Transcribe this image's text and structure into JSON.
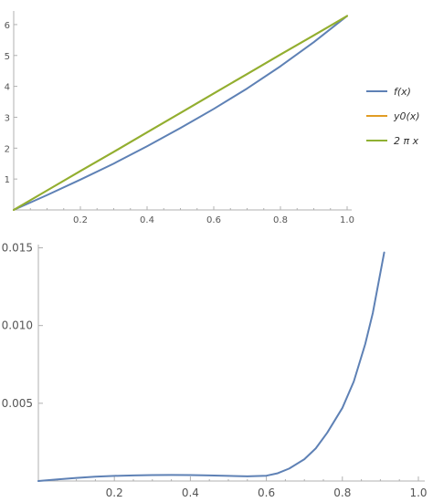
{
  "chart_data": [
    {
      "type": "line",
      "title": "",
      "xlabel": "",
      "ylabel": "",
      "xlim": [
        0,
        1.0
      ],
      "ylim": [
        0,
        6.5
      ],
      "x_ticks": [
        "0.2",
        "0.4",
        "0.6",
        "0.8",
        "1.0"
      ],
      "y_ticks": [
        "1",
        "2",
        "3",
        "4",
        "5",
        "6"
      ],
      "legend_position": "right",
      "series": [
        {
          "name": "f(x)",
          "color": "#5E81B5",
          "x": [
            0,
            0.1,
            0.2,
            0.3,
            0.4,
            0.5,
            0.6,
            0.7,
            0.8,
            0.9,
            1.0
          ],
          "y": [
            0,
            0.48,
            0.98,
            1.5,
            2.06,
            2.65,
            3.27,
            3.93,
            4.65,
            5.43,
            6.28
          ]
        },
        {
          "name": "y0(x)",
          "color": "#E19C24",
          "x": [
            0,
            0.1,
            0.2,
            0.3,
            0.4,
            0.5,
            0.6,
            0.7,
            0.8,
            0.9,
            1.0
          ],
          "y": [
            0,
            0.63,
            1.26,
            1.88,
            2.51,
            3.14,
            3.77,
            4.4,
            5.03,
            5.65,
            6.28
          ]
        },
        {
          "name": "2 π x",
          "color": "#8FB032",
          "x": [
            0,
            0.1,
            0.2,
            0.3,
            0.4,
            0.5,
            0.6,
            0.7,
            0.8,
            0.9,
            1.0
          ],
          "y": [
            0,
            0.63,
            1.26,
            1.88,
            2.51,
            3.14,
            3.77,
            4.4,
            5.03,
            5.65,
            6.28
          ]
        }
      ]
    },
    {
      "type": "line",
      "title": "",
      "xlabel": "",
      "ylabel": "",
      "xlim": [
        0,
        1.0
      ],
      "ylim": [
        0,
        0.0155
      ],
      "x_ticks": [
        "0.2",
        "0.4",
        "0.6",
        "0.8",
        "1.0"
      ],
      "y_ticks": [
        "0.005",
        "0.010",
        "0.015"
      ],
      "series": [
        {
          "name": "",
          "color": "#5E81B5",
          "x": [
            0,
            0.05,
            0.1,
            0.15,
            0.2,
            0.25,
            0.3,
            0.35,
            0.4,
            0.45,
            0.5,
            0.55,
            0.6,
            0.63,
            0.66,
            0.7,
            0.73,
            0.76,
            0.8,
            0.83,
            0.86,
            0.88,
            0.91
          ],
          "y": [
            0,
            0.0001,
            0.0002,
            0.00028,
            0.00033,
            0.00036,
            0.00038,
            0.00039,
            0.00038,
            0.00036,
            0.00033,
            0.0003,
            0.00034,
            0.0005,
            0.0008,
            0.0014,
            0.0021,
            0.0031,
            0.0047,
            0.0064,
            0.0088,
            0.0108,
            0.0147
          ]
        }
      ]
    }
  ]
}
